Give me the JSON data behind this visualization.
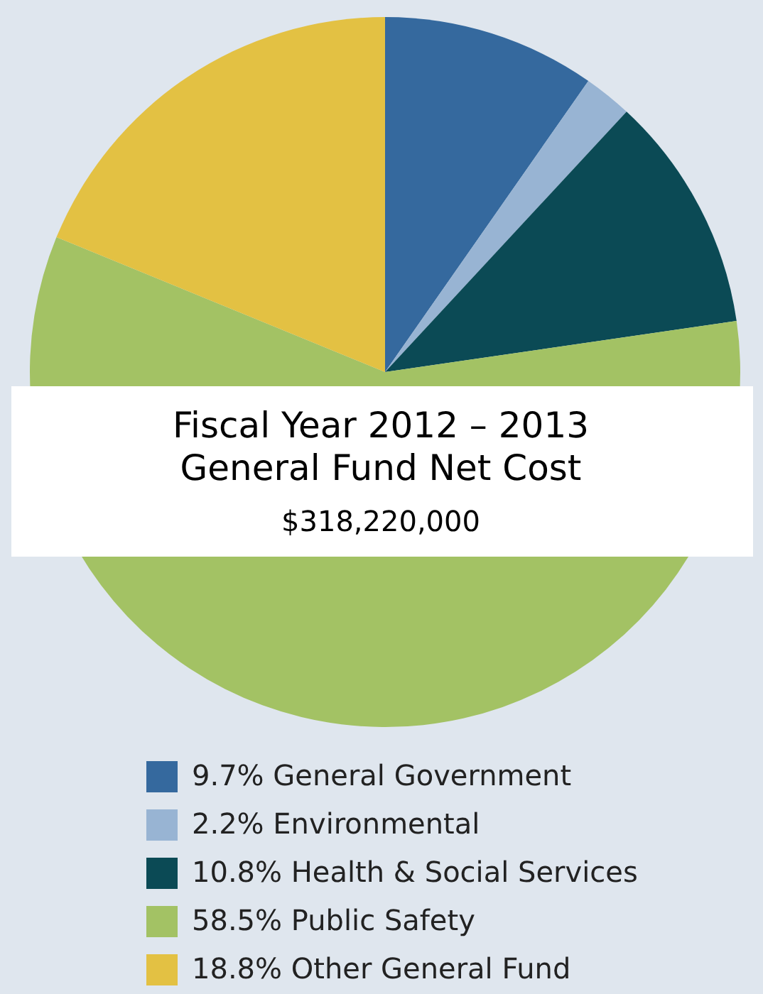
{
  "chart_data": {
    "type": "pie",
    "title": "Fiscal Year 2012 – 2013\nGeneral Fund Net Cost",
    "subtitle": "$318,220,000",
    "categories": [
      "General Government",
      "Environmental",
      "Health & Social Services",
      "Public Safety",
      "Other General Fund"
    ],
    "values": [
      9.7,
      2.2,
      10.8,
      58.5,
      18.8
    ],
    "value_labels": [
      "9.7%",
      "2.2%",
      "10.8%",
      "58.5%",
      "18.8%"
    ],
    "colors": [
      "#35699e",
      "#98b4d3",
      "#0b4a55",
      "#a3c264",
      "#e3c143"
    ],
    "legend": "bottom"
  }
}
